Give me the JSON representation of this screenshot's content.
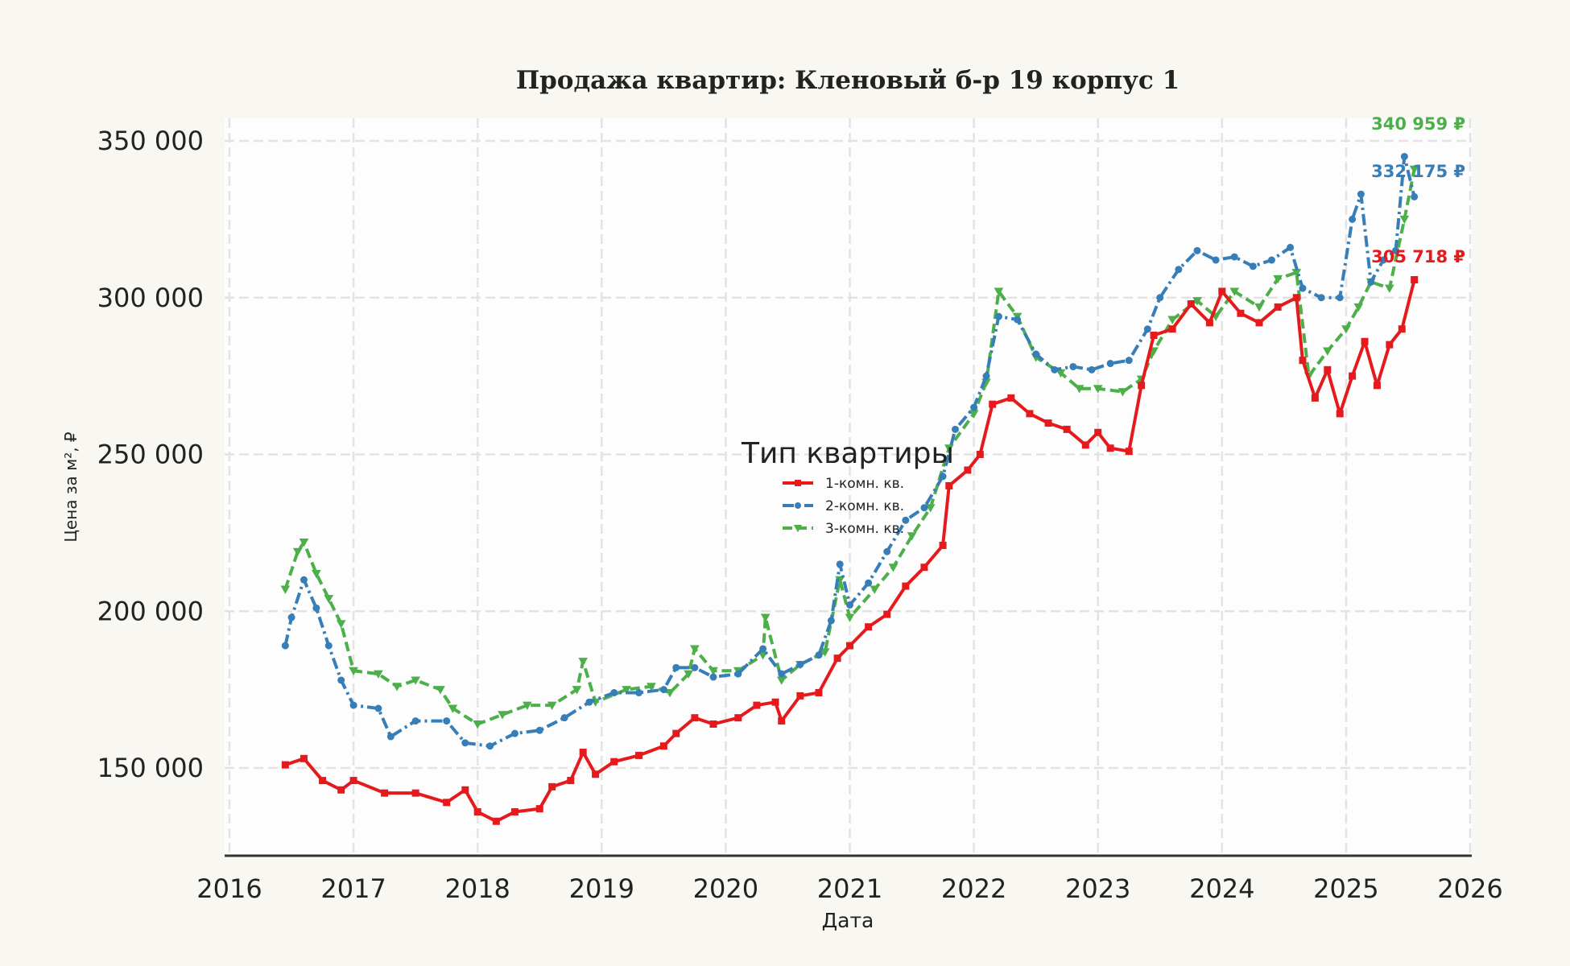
{
  "chart_data": {
    "type": "line",
    "title": "Продажа квартир: Кленовый б-р 19 корпус 1",
    "xlabel": "Дата",
    "ylabel": "Цена за м², ₽",
    "xlim": [
      2016,
      2026
    ],
    "ylim": [
      122000,
      357000
    ],
    "grid": true,
    "x_ticks": [
      "2016",
      "2017",
      "2018",
      "2019",
      "2020",
      "2021",
      "2022",
      "2023",
      "2024",
      "2025",
      "2026"
    ],
    "y_ticks": [
      {
        "value": 150000,
        "label": "150 000"
      },
      {
        "value": 200000,
        "label": "200 000"
      },
      {
        "value": 250000,
        "label": "250 000"
      },
      {
        "value": 300000,
        "label": "300 000"
      },
      {
        "value": 350000,
        "label": "350 000"
      }
    ],
    "legend": {
      "title": "Тип квартиры",
      "placement": "center"
    },
    "series": [
      {
        "name": "1-комн. кв.",
        "color": "#e41a1c",
        "marker": "square",
        "dash": "solid",
        "end_label": "305 718 ₽",
        "x": [
          2016.45,
          2016.6,
          2016.75,
          2016.9,
          2017.0,
          2017.25,
          2017.5,
          2017.75,
          2017.9,
          2018.0,
          2018.15,
          2018.3,
          2018.5,
          2018.6,
          2018.75,
          2018.85,
          2018.95,
          2019.1,
          2019.3,
          2019.5,
          2019.6,
          2019.75,
          2019.9,
          2020.1,
          2020.25,
          2020.4,
          2020.45,
          2020.6,
          2020.75,
          2020.9,
          2021.0,
          2021.15,
          2021.3,
          2021.45,
          2021.6,
          2021.75,
          2021.8,
          2021.95,
          2022.05,
          2022.15,
          2022.3,
          2022.45,
          2022.6,
          2022.75,
          2022.9,
          2023.0,
          2023.1,
          2023.25,
          2023.35,
          2023.45,
          2023.6,
          2023.75,
          2023.9,
          2024.0,
          2024.15,
          2024.3,
          2024.45,
          2024.6,
          2024.65,
          2024.75,
          2024.85,
          2024.95,
          2025.05,
          2025.15,
          2025.25,
          2025.35,
          2025.45,
          2025.55
        ],
        "y": [
          151000,
          153000,
          146000,
          143000,
          146000,
          142000,
          142000,
          139000,
          143000,
          136000,
          133000,
          136000,
          137000,
          144000,
          146000,
          155000,
          148000,
          152000,
          154000,
          157000,
          161000,
          166000,
          164000,
          166000,
          170000,
          171000,
          165000,
          173000,
          174000,
          185000,
          189000,
          195000,
          199000,
          208000,
          214000,
          221000,
          240000,
          245000,
          250000,
          266000,
          268000,
          263000,
          260000,
          258000,
          253000,
          257000,
          252000,
          251000,
          272000,
          288000,
          290000,
          298000,
          292000,
          302000,
          295000,
          292000,
          297000,
          300000,
          280000,
          268000,
          277000,
          263000,
          275000,
          286000,
          272000,
          285000,
          290000,
          305718
        ]
      },
      {
        "name": "2-комн. кв.",
        "color": "#377eb8",
        "marker": "circle",
        "dash": "dashdot",
        "end_label": "332 175 ₽",
        "x": [
          2016.45,
          2016.5,
          2016.6,
          2016.7,
          2016.8,
          2016.9,
          2017.0,
          2017.2,
          2017.3,
          2017.5,
          2017.75,
          2017.9,
          2018.1,
          2018.3,
          2018.5,
          2018.7,
          2018.9,
          2019.1,
          2019.3,
          2019.5,
          2019.6,
          2019.75,
          2019.9,
          2020.1,
          2020.3,
          2020.45,
          2020.6,
          2020.75,
          2020.85,
          2020.92,
          2021.0,
          2021.15,
          2021.3,
          2021.45,
          2021.6,
          2021.75,
          2021.85,
          2022.0,
          2022.1,
          2022.2,
          2022.35,
          2022.5,
          2022.65,
          2022.8,
          2022.95,
          2023.1,
          2023.25,
          2023.4,
          2023.5,
          2023.65,
          2023.8,
          2023.95,
          2024.1,
          2024.25,
          2024.4,
          2024.55,
          2024.65,
          2024.8,
          2024.95,
          2025.05,
          2025.12,
          2025.2,
          2025.3,
          2025.4,
          2025.47,
          2025.55
        ],
        "y": [
          189000,
          198000,
          210000,
          201000,
          189000,
          178000,
          170000,
          169000,
          160000,
          165000,
          165000,
          158000,
          157000,
          161000,
          162000,
          166000,
          171000,
          174000,
          174000,
          175000,
          182000,
          182000,
          179000,
          180000,
          188000,
          180000,
          183000,
          186000,
          197000,
          215000,
          202000,
          209000,
          219000,
          229000,
          233000,
          243000,
          258000,
          265000,
          275000,
          294000,
          293000,
          282000,
          277000,
          278000,
          277000,
          279000,
          280000,
          290000,
          300000,
          309000,
          315000,
          312000,
          313000,
          310000,
          312000,
          316000,
          303000,
          300000,
          300000,
          325000,
          333000,
          305000,
          312000,
          315000,
          345000,
          332175
        ]
      },
      {
        "name": "3-комн. кв.",
        "color": "#4daf4a",
        "marker": "triangle-down",
        "dash": "dashed",
        "end_label": "340 959 ₽",
        "x": [
          2016.45,
          2016.55,
          2016.6,
          2016.7,
          2016.8,
          2016.9,
          2017.0,
          2017.2,
          2017.35,
          2017.5,
          2017.7,
          2017.8,
          2018.0,
          2018.2,
          2018.4,
          2018.6,
          2018.8,
          2018.85,
          2018.95,
          2019.2,
          2019.4,
          2019.55,
          2019.7,
          2019.75,
          2019.9,
          2020.1,
          2020.3,
          2020.32,
          2020.45,
          2020.6,
          2020.8,
          2020.92,
          2021.0,
          2021.2,
          2021.35,
          2021.5,
          2021.65,
          2021.8,
          2022.0,
          2022.1,
          2022.2,
          2022.35,
          2022.5,
          2022.7,
          2022.85,
          2023.0,
          2023.2,
          2023.35,
          2023.45,
          2023.6,
          2023.8,
          2023.95,
          2024.1,
          2024.3,
          2024.45,
          2024.6,
          2024.7,
          2024.85,
          2025.0,
          2025.1,
          2025.2,
          2025.35,
          2025.47,
          2025.55
        ],
        "y": [
          207000,
          219000,
          222000,
          212000,
          204000,
          196000,
          181000,
          180000,
          176000,
          178000,
          175000,
          169000,
          164000,
          167000,
          170000,
          170000,
          175000,
          184000,
          171000,
          175000,
          176000,
          174000,
          180000,
          188000,
          181000,
          181000,
          186000,
          198000,
          178000,
          183000,
          187000,
          210000,
          198000,
          207000,
          214000,
          224000,
          233000,
          252000,
          263000,
          273000,
          302000,
          294000,
          281000,
          276000,
          271000,
          271000,
          270000,
          274000,
          283000,
          293000,
          299000,
          294000,
          302000,
          297000,
          306000,
          308000,
          275000,
          283000,
          290000,
          297000,
          305000,
          303000,
          325000,
          340959
        ]
      }
    ]
  }
}
